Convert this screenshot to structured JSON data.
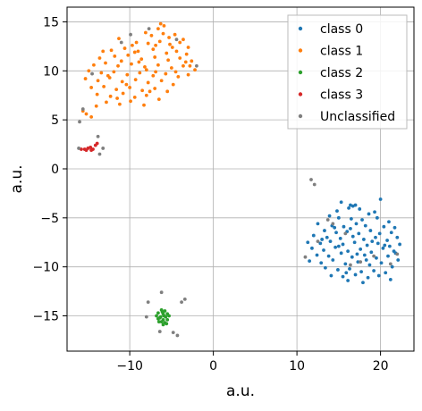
{
  "chart_data": {
    "type": "scatter",
    "title": "",
    "xlabel": "a.u.",
    "ylabel": "a.u.",
    "xlim": [
      -17.5,
      24.0
    ],
    "ylim": [
      -18.6,
      16.5
    ],
    "xticks": [
      -10,
      0,
      10,
      20
    ],
    "xtick_labels": [
      "−10",
      "0",
      "10",
      "20"
    ],
    "yticks": [
      -15,
      -10,
      -5,
      0,
      5,
      10,
      15
    ],
    "ytick_labels": [
      "−15",
      "−10",
      "−5",
      "0",
      "5",
      "10",
      "15"
    ],
    "grid": true,
    "legend_position": "top-right",
    "series": [
      {
        "name": "class 0",
        "color": "#1f77b4",
        "points": [
          [
            16.4,
            -3.7
          ],
          [
            16.7,
            -3.8
          ],
          [
            17.0,
            -3.7
          ],
          [
            15.3,
            -3.4
          ],
          [
            20.0,
            -3.1
          ],
          [
            16.2,
            -4.0
          ],
          [
            17.5,
            -4.1
          ],
          [
            14.8,
            -4.3
          ],
          [
            18.6,
            -4.6
          ],
          [
            19.3,
            -4.4
          ],
          [
            13.9,
            -4.8
          ],
          [
            15.0,
            -5.0
          ],
          [
            16.5,
            -5.1
          ],
          [
            17.8,
            -5.2
          ],
          [
            19.6,
            -5.0
          ],
          [
            21.0,
            -5.4
          ],
          [
            12.5,
            -5.6
          ],
          [
            14.2,
            -5.8
          ],
          [
            15.6,
            -5.9
          ],
          [
            17.1,
            -5.6
          ],
          [
            18.2,
            -5.8
          ],
          [
            20.4,
            -5.9
          ],
          [
            21.7,
            -6.0
          ],
          [
            13.3,
            -6.3
          ],
          [
            14.7,
            -6.5
          ],
          [
            16.0,
            -6.4
          ],
          [
            17.4,
            -6.6
          ],
          [
            18.8,
            -6.3
          ],
          [
            19.9,
            -6.6
          ],
          [
            21.3,
            -6.5
          ],
          [
            12.0,
            -6.8
          ],
          [
            13.6,
            -7.0
          ],
          [
            15.2,
            -7.1
          ],
          [
            16.7,
            -6.9
          ],
          [
            18.0,
            -7.2
          ],
          [
            19.4,
            -7.0
          ],
          [
            20.8,
            -7.3
          ],
          [
            22.0,
            -7.0
          ],
          [
            11.3,
            -7.5
          ],
          [
            12.8,
            -7.6
          ],
          [
            14.0,
            -7.4
          ],
          [
            15.5,
            -7.7
          ],
          [
            16.9,
            -7.5
          ],
          [
            18.4,
            -7.8
          ],
          [
            19.7,
            -7.6
          ],
          [
            21.1,
            -7.9
          ],
          [
            22.3,
            -7.7
          ],
          [
            11.8,
            -8.1
          ],
          [
            13.2,
            -8.3
          ],
          [
            14.6,
            -8.0
          ],
          [
            16.1,
            -8.4
          ],
          [
            17.6,
            -8.2
          ],
          [
            18.9,
            -8.5
          ],
          [
            20.3,
            -8.1
          ],
          [
            21.6,
            -8.4
          ],
          [
            12.4,
            -8.8
          ],
          [
            13.8,
            -8.9
          ],
          [
            15.3,
            -8.6
          ],
          [
            16.6,
            -9.0
          ],
          [
            18.1,
            -8.8
          ],
          [
            19.5,
            -9.1
          ],
          [
            20.9,
            -8.9
          ],
          [
            22.1,
            -9.3
          ],
          [
            11.5,
            -9.4
          ],
          [
            12.9,
            -9.6
          ],
          [
            14.3,
            -9.3
          ],
          [
            15.8,
            -9.7
          ],
          [
            17.3,
            -9.5
          ],
          [
            18.7,
            -9.8
          ],
          [
            20.1,
            -9.6
          ],
          [
            21.4,
            -10.0
          ],
          [
            13.4,
            -10.1
          ],
          [
            14.9,
            -10.3
          ],
          [
            16.3,
            -10.2
          ],
          [
            17.7,
            -10.5
          ],
          [
            19.2,
            -10.4
          ],
          [
            20.6,
            -10.6
          ],
          [
            14.1,
            -10.9
          ],
          [
            15.5,
            -11.0
          ],
          [
            17.0,
            -10.8
          ],
          [
            18.5,
            -11.1
          ],
          [
            19.8,
            -10.9
          ],
          [
            21.2,
            -11.3
          ],
          [
            16.1,
            -11.4
          ],
          [
            17.9,
            -11.6
          ],
          [
            15.0,
            -7.9
          ],
          [
            17.2,
            -8.7
          ],
          [
            19.0,
            -7.4
          ],
          [
            16.4,
            -6.1
          ],
          [
            13.0,
            -7.2
          ],
          [
            20.5,
            -7.8
          ],
          [
            18.3,
            -9.3
          ],
          [
            14.5,
            -6.0
          ],
          [
            21.8,
            -8.6
          ],
          [
            15.9,
            -10.6
          ]
        ]
      },
      {
        "name": "class 1",
        "color": "#ff7f0e",
        "points": [
          [
            -6.3,
            14.8
          ],
          [
            -5.9,
            14.6
          ],
          [
            -6.6,
            14.3
          ],
          [
            -8.1,
            13.9
          ],
          [
            -7.4,
            13.6
          ],
          [
            -6.0,
            13.8
          ],
          [
            -4.6,
            13.7
          ],
          [
            -3.6,
            13.2
          ],
          [
            -11.3,
            13.3
          ],
          [
            -9.2,
            12.9
          ],
          [
            -7.8,
            12.8
          ],
          [
            -6.4,
            13.0
          ],
          [
            -5.2,
            12.7
          ],
          [
            -4.0,
            12.9
          ],
          [
            -3.0,
            12.4
          ],
          [
            -12.2,
            12.1
          ],
          [
            -10.6,
            12.3
          ],
          [
            -9.0,
            12.0
          ],
          [
            -7.2,
            12.2
          ],
          [
            -5.6,
            11.8
          ],
          [
            -4.4,
            12.0
          ],
          [
            -3.2,
            11.7
          ],
          [
            -13.6,
            11.3
          ],
          [
            -11.8,
            11.5
          ],
          [
            -10.2,
            11.6
          ],
          [
            -8.6,
            11.2
          ],
          [
            -7.0,
            11.4
          ],
          [
            -5.4,
            11.1
          ],
          [
            -4.0,
            11.3
          ],
          [
            -2.6,
            11.0
          ],
          [
            -14.3,
            10.6
          ],
          [
            -12.9,
            10.8
          ],
          [
            -11.4,
            10.5
          ],
          [
            -9.8,
            10.7
          ],
          [
            -8.2,
            10.4
          ],
          [
            -6.6,
            10.6
          ],
          [
            -5.0,
            10.3
          ],
          [
            -3.6,
            10.5
          ],
          [
            -2.2,
            10.1
          ],
          [
            -14.9,
            10.0
          ],
          [
            -13.4,
            9.8
          ],
          [
            -11.9,
            9.9
          ],
          [
            -10.3,
            9.6
          ],
          [
            -8.8,
            9.8
          ],
          [
            -7.2,
            9.5
          ],
          [
            -5.7,
            9.7
          ],
          [
            -4.2,
            9.4
          ],
          [
            -3.0,
            9.6
          ],
          [
            -15.3,
            9.2
          ],
          [
            -13.8,
            9.0
          ],
          [
            -12.4,
            9.3
          ],
          [
            -10.9,
            8.9
          ],
          [
            -9.3,
            9.1
          ],
          [
            -7.8,
            8.8
          ],
          [
            -6.2,
            9.0
          ],
          [
            -4.8,
            8.6
          ],
          [
            -14.6,
            8.3
          ],
          [
            -13.1,
            8.4
          ],
          [
            -11.6,
            8.1
          ],
          [
            -10.0,
            8.3
          ],
          [
            -8.5,
            8.0
          ],
          [
            -7.0,
            8.2
          ],
          [
            -5.5,
            7.9
          ],
          [
            -13.9,
            7.6
          ],
          [
            -12.3,
            7.4
          ],
          [
            -10.8,
            7.7
          ],
          [
            -9.4,
            7.3
          ],
          [
            -8.0,
            7.5
          ],
          [
            -6.5,
            7.1
          ],
          [
            -12.8,
            6.8
          ],
          [
            -11.2,
            6.6
          ],
          [
            -9.9,
            6.9
          ],
          [
            -8.3,
            6.5
          ],
          [
            -14.0,
            6.4
          ],
          [
            -15.2,
            5.6
          ],
          [
            -14.6,
            5.3
          ],
          [
            -15.6,
            5.9
          ],
          [
            -9.4,
            11.9
          ],
          [
            -6.9,
            12.6
          ],
          [
            -4.9,
            12.4
          ],
          [
            -11.0,
            11.0
          ],
          [
            -8.9,
            10.9
          ],
          [
            -3.3,
            10.9
          ],
          [
            -12.6,
            9.5
          ],
          [
            -6.9,
            9.9
          ],
          [
            -2.8,
            10.5
          ],
          [
            -10.4,
            8.6
          ],
          [
            -7.6,
            7.9
          ],
          [
            -9.7,
            12.6
          ],
          [
            -5.3,
            13.4
          ],
          [
            -13.2,
            12.0
          ],
          [
            -8.0,
            10.1
          ],
          [
            -4.5,
            9.9
          ],
          [
            -11.5,
            7.2
          ]
        ]
      },
      {
        "name": "class 2",
        "color": "#2ca02c",
        "points": [
          [
            -6.2,
            -14.4
          ],
          [
            -5.8,
            -14.5
          ],
          [
            -6.6,
            -14.7
          ],
          [
            -6.0,
            -14.8
          ],
          [
            -5.5,
            -14.8
          ],
          [
            -6.8,
            -15.0
          ],
          [
            -6.3,
            -15.1
          ],
          [
            -5.7,
            -15.1
          ],
          [
            -5.3,
            -15.0
          ],
          [
            -6.6,
            -15.3
          ],
          [
            -6.0,
            -15.4
          ],
          [
            -5.5,
            -15.4
          ],
          [
            -6.2,
            -15.6
          ],
          [
            -5.8,
            -15.7
          ],
          [
            -6.5,
            -15.6
          ],
          [
            -6.0,
            -15.9
          ],
          [
            -5.6,
            -15.8
          ],
          [
            -6.4,
            -15.2
          ],
          [
            -5.9,
            -15.0
          ],
          [
            -6.1,
            -14.6
          ]
        ]
      },
      {
        "name": "class 3",
        "color": "#d62728",
        "points": [
          [
            -15.8,
            2.0
          ],
          [
            -15.4,
            2.0
          ],
          [
            -15.0,
            2.1
          ],
          [
            -14.7,
            2.2
          ],
          [
            -14.4,
            2.0
          ],
          [
            -14.1,
            2.4
          ],
          [
            -13.9,
            2.6
          ],
          [
            -15.2,
            1.9
          ],
          [
            -14.6,
            1.9
          ]
        ]
      },
      {
        "name": "Unclassified",
        "color": "#7f7f7f",
        "points": [
          [
            -7.7,
            14.3
          ],
          [
            -9.9,
            13.7
          ],
          [
            -4.4,
            13.2
          ],
          [
            -15.6,
            6.1
          ],
          [
            -14.5,
            9.7
          ],
          [
            -11.0,
            12.9
          ],
          [
            -2.0,
            10.5
          ],
          [
            -16.0,
            4.8
          ],
          [
            -13.8,
            3.3
          ],
          [
            -13.2,
            2.1
          ],
          [
            -13.6,
            1.5
          ],
          [
            -16.1,
            2.1
          ],
          [
            -6.2,
            -12.6
          ],
          [
            -7.8,
            -13.6
          ],
          [
            -3.4,
            -13.3
          ],
          [
            -3.8,
            -13.6
          ],
          [
            -8.0,
            -15.1
          ],
          [
            -6.4,
            -16.6
          ],
          [
            -4.8,
            -16.7
          ],
          [
            -4.3,
            -17.0
          ],
          [
            11.7,
            -1.1
          ],
          [
            12.1,
            -1.6
          ],
          [
            13.7,
            -5.2
          ],
          [
            11.0,
            -9.0
          ],
          [
            12.5,
            -7.4
          ],
          [
            17.6,
            -9.5
          ],
          [
            16.4,
            -9.8
          ],
          [
            19.2,
            -8.9
          ],
          [
            21.2,
            -9.7
          ],
          [
            22.0,
            -8.7
          ],
          [
            14.3,
            -5.6
          ],
          [
            15.8,
            -6.6
          ]
        ]
      }
    ]
  }
}
